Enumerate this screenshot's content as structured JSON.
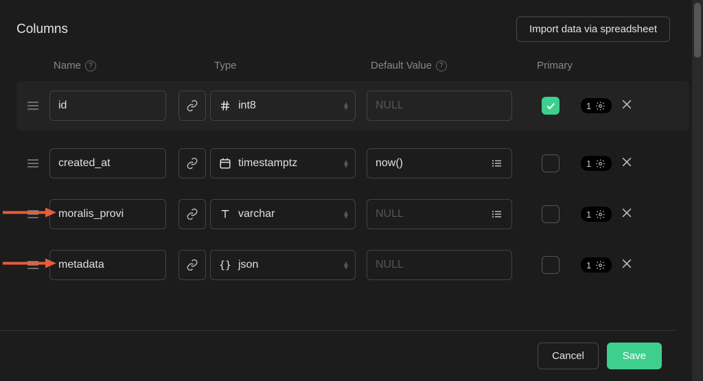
{
  "colors": {
    "background": "#1c1c1c",
    "row_highlight": "#232323",
    "border": "#444444",
    "text": "#e4e4e4",
    "muted": "#888888",
    "placeholder": "#555555",
    "accent_green": "#3ecf8e",
    "arrow": "#e85c3a",
    "scrollbar_track": "#2a2a2a",
    "scrollbar_thumb": "#555555"
  },
  "header": {
    "title": "Columns",
    "import_button": "Import data via spreadsheet"
  },
  "column_headers": {
    "name": "Name",
    "type": "Type",
    "default_value": "Default Value",
    "primary": "Primary"
  },
  "rows": [
    {
      "highlighted": true,
      "name": "id",
      "type": "int8",
      "type_icon": "hash",
      "default_value": "",
      "default_placeholder": "NULL",
      "default_has_menu": false,
      "primary": true,
      "badge_count": "1",
      "arrow_annotation": false
    },
    {
      "highlighted": false,
      "name": "created_at",
      "type": "timestamptz",
      "type_icon": "calendar",
      "default_value": "now()",
      "default_placeholder": "",
      "default_has_menu": true,
      "primary": false,
      "badge_count": "1",
      "arrow_annotation": false
    },
    {
      "highlighted": false,
      "name": "moralis_provi",
      "type": "varchar",
      "type_icon": "text",
      "default_value": "",
      "default_placeholder": "NULL",
      "default_has_menu": true,
      "primary": false,
      "badge_count": "1",
      "arrow_annotation": true
    },
    {
      "highlighted": false,
      "name": "metadata",
      "type": "json",
      "type_icon": "braces",
      "default_value": "",
      "default_placeholder": "NULL",
      "default_has_menu": false,
      "primary": false,
      "badge_count": "1",
      "arrow_annotation": true
    }
  ],
  "footer": {
    "cancel": "Cancel",
    "save": "Save"
  }
}
